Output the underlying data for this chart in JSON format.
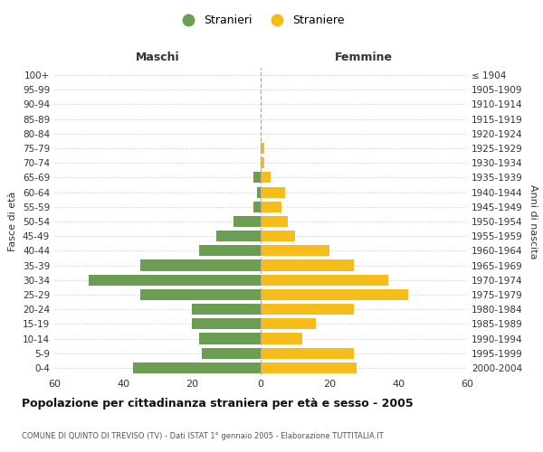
{
  "age_groups": [
    "0-4",
    "5-9",
    "10-14",
    "15-19",
    "20-24",
    "25-29",
    "30-34",
    "35-39",
    "40-44",
    "45-49",
    "50-54",
    "55-59",
    "60-64",
    "65-69",
    "70-74",
    "75-79",
    "80-84",
    "85-89",
    "90-94",
    "95-99",
    "100+"
  ],
  "birth_years": [
    "2000-2004",
    "1995-1999",
    "1990-1994",
    "1985-1989",
    "1980-1984",
    "1975-1979",
    "1970-1974",
    "1965-1969",
    "1960-1964",
    "1955-1959",
    "1950-1954",
    "1945-1949",
    "1940-1944",
    "1935-1939",
    "1930-1934",
    "1925-1929",
    "1920-1924",
    "1915-1919",
    "1910-1914",
    "1905-1909",
    "≤ 1904"
  ],
  "maschi": [
    37,
    17,
    18,
    20,
    20,
    35,
    50,
    35,
    18,
    13,
    8,
    2,
    1,
    2,
    0,
    0,
    0,
    0,
    0,
    0,
    0
  ],
  "femmine": [
    28,
    27,
    12,
    16,
    27,
    43,
    37,
    27,
    20,
    10,
    8,
    6,
    7,
    3,
    1,
    1,
    0,
    0,
    0,
    0,
    0
  ],
  "color_maschi": "#6b9e52",
  "color_femmine": "#f5bc1a",
  "title": "Popolazione per cittadinanza straniera per età e sesso - 2005",
  "subtitle": "COMUNE DI QUINTO DI TREVISO (TV) - Dati ISTAT 1° gennaio 2005 - Elaborazione TUTTITALIA.IT",
  "xlabel_left": "Maschi",
  "xlabel_right": "Femmine",
  "ylabel_left": "Fasce di età",
  "ylabel_right": "Anni di nascita",
  "legend_maschi": "Stranieri",
  "legend_femmine": "Straniere",
  "xlim": 60,
  "background_color": "#ffffff",
  "grid_color": "#cccccc"
}
